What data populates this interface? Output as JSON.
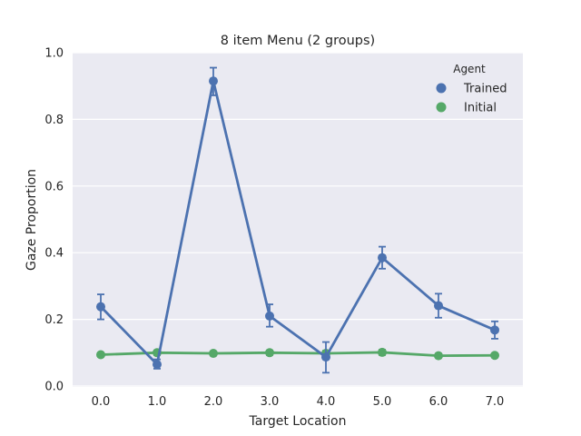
{
  "chart_data": {
    "type": "line",
    "title": "8 item Menu (2 groups)",
    "xlabel": "Target Location",
    "ylabel": "Gaze Proportion",
    "categories": [
      "0.0",
      "1.0",
      "2.0",
      "3.0",
      "4.0",
      "5.0",
      "6.0",
      "7.0"
    ],
    "ylim": [
      0,
      1.0
    ],
    "yticks": [
      "0.0",
      "0.2",
      "0.4",
      "0.6",
      "0.8",
      "1.0"
    ],
    "grid": true,
    "legend": {
      "title": "Agent",
      "placement": "top-right"
    },
    "series": [
      {
        "name": "Trained",
        "color": "#4c72b0",
        "values": [
          0.238,
          0.065,
          0.915,
          0.21,
          0.087,
          0.385,
          0.241,
          0.168
        ],
        "err_low": [
          0.2,
          0.052,
          0.872,
          0.178,
          0.04,
          0.352,
          0.205,
          0.142
        ],
        "err_high": [
          0.275,
          0.08,
          0.955,
          0.245,
          0.132,
          0.418,
          0.277,
          0.194
        ]
      },
      {
        "name": "Initial",
        "color": "#55a868",
        "values": [
          0.094,
          0.1,
          0.098,
          0.1,
          0.098,
          0.101,
          0.091,
          0.092
        ],
        "err_low": [
          0.088,
          0.093,
          0.093,
          0.093,
          0.09,
          0.093,
          0.085,
          0.086
        ],
        "err_high": [
          0.1,
          0.107,
          0.103,
          0.107,
          0.106,
          0.109,
          0.097,
          0.098
        ]
      }
    ]
  }
}
